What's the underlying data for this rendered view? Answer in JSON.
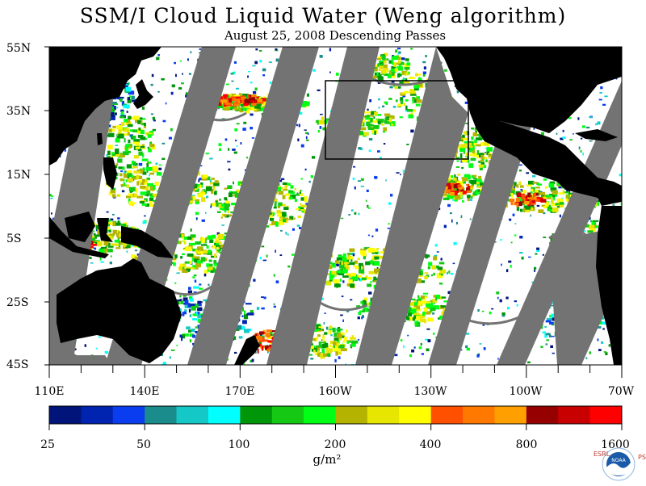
{
  "title": "SSM/I Cloud Liquid Water (Weng algorithm)",
  "subtitle": "August 25, 2008  Descending Passes",
  "lat_labels": [
    "55N",
    "35N",
    "15N",
    "5S",
    "25S",
    "45S"
  ],
  "lon_labels": [
    "110E",
    "140E",
    "170E",
    "160W",
    "130W",
    "100W",
    "70W"
  ],
  "colorbar": {
    "labels": [
      "25",
      "50",
      "100",
      "200",
      "400",
      "800",
      "1600"
    ],
    "units": "g/m²",
    "colors": [
      "#00147a",
      "#0023b0",
      "#0a3cf0",
      "#1a8c8c",
      "#14c8c8",
      "#00ffff",
      "#00960a",
      "#14c814",
      "#00ff14",
      "#b4b400",
      "#e6e600",
      "#ffff00",
      "#ff5000",
      "#ff7800",
      "#ffa000",
      "#960000",
      "#c80000",
      "#ff0000"
    ]
  },
  "colors": {
    "land": "#000000",
    "no_data_gap": "#737373",
    "clear": "#ffffff",
    "box_outline": "#000000"
  },
  "logo": {
    "center": "NOAA",
    "left": "ESRL",
    "right": "PSD"
  }
}
